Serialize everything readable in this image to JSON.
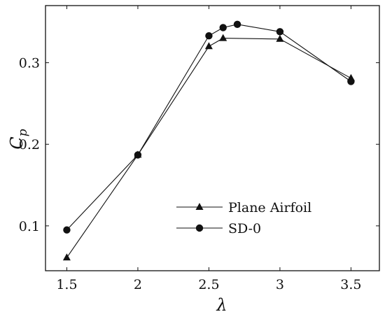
{
  "chart_data": {
    "type": "line",
    "xlabel": "λ",
    "ylabel": {
      "main": "C",
      "sub": "p"
    },
    "xlim": [
      1.35,
      3.7
    ],
    "ylim": [
      0.045,
      0.37
    ],
    "xticks": [
      1.5,
      2,
      2.5,
      3,
      3.5
    ],
    "yticks": [
      0.1,
      0.2,
      0.3
    ],
    "grid": false,
    "legend": "lower-right",
    "series": [
      {
        "name": "Plane Airfoil",
        "marker": "triangle",
        "color": "#111111",
        "x": [
          1.5,
          2.0,
          2.5,
          2.6,
          3.0,
          3.5
        ],
        "y": [
          0.061,
          0.187,
          0.32,
          0.33,
          0.329,
          0.281
        ]
      },
      {
        "name": "SD-0",
        "marker": "circle",
        "color": "#111111",
        "x": [
          1.5,
          2.0,
          2.5,
          2.6,
          2.7,
          3.0,
          3.5
        ],
        "y": [
          0.095,
          0.187,
          0.333,
          0.343,
          0.347,
          0.338,
          0.277
        ]
      }
    ]
  }
}
